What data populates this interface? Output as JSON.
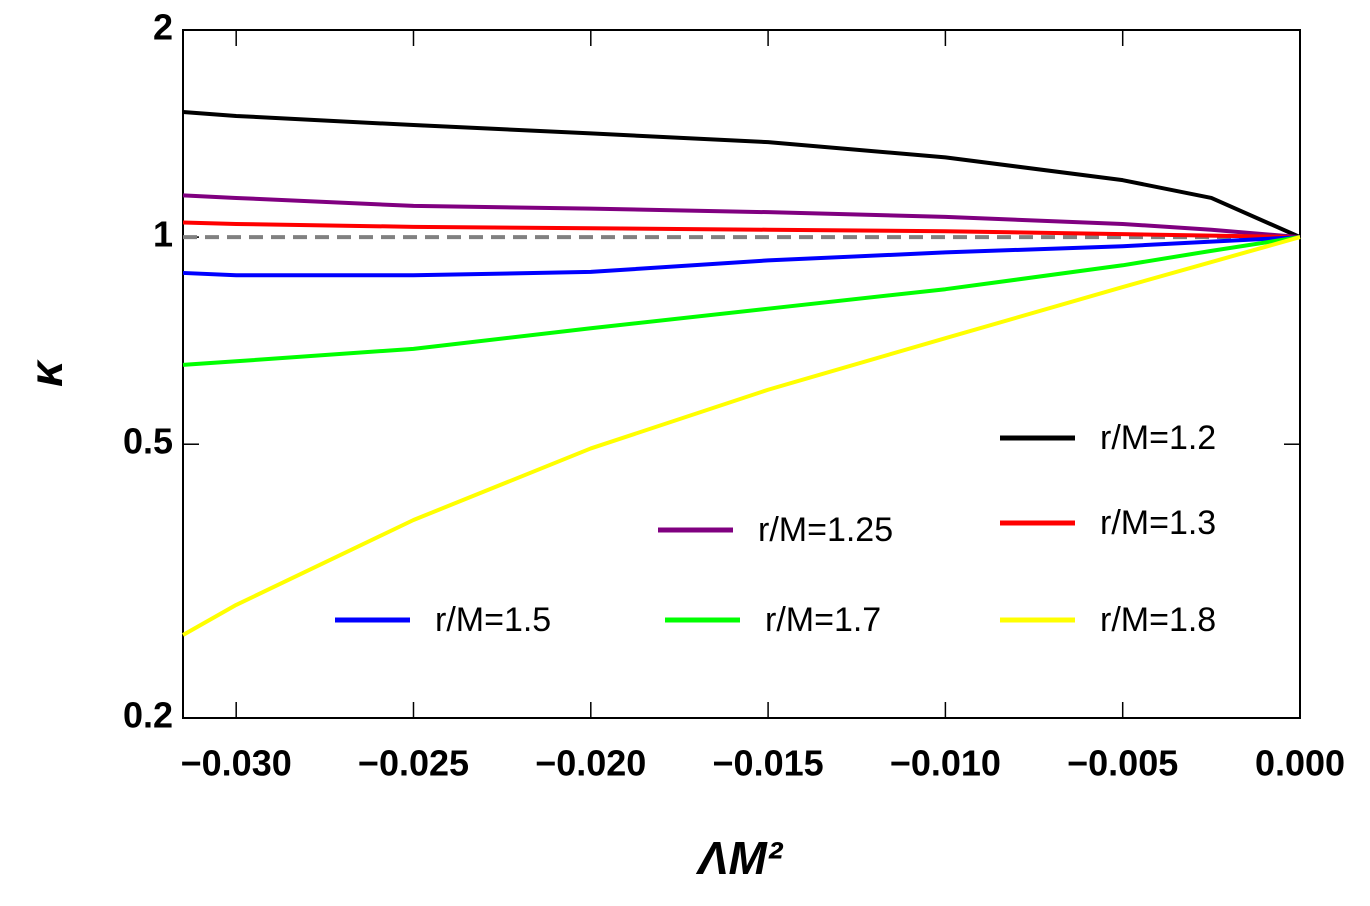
{
  "chart_data": {
    "type": "line",
    "x_label": "ΛM²",
    "y_label": "κ",
    "x": [
      -0.0315,
      -0.03,
      -0.025,
      -0.02,
      -0.015,
      -0.01,
      -0.005,
      -0.0025,
      0
    ],
    "series": [
      {
        "name": "r/M=1.2",
        "color": "#000000",
        "values": [
          1.52,
          1.5,
          1.455,
          1.415,
          1.374,
          1.306,
          1.21,
          1.14,
          1
        ]
      },
      {
        "name": "r/M=1.25",
        "color": "#800080",
        "values": [
          1.15,
          1.14,
          1.11,
          1.1,
          1.087,
          1.07,
          1.045,
          1.025,
          1
        ]
      },
      {
        "name": "r/M=1.3",
        "color": "#ff0000",
        "values": [
          1.05,
          1.045,
          1.035,
          1.03,
          1.025,
          1.02,
          1.01,
          1.005,
          1
        ]
      },
      {
        "name": "r/M=1.5",
        "color": "#0000ff",
        "values": [
          0.887,
          0.88,
          0.88,
          0.89,
          0.925,
          0.95,
          0.97,
          0.985,
          1
        ]
      },
      {
        "name": "r/M=1.7",
        "color": "#00ff00",
        "values": [
          0.652,
          0.66,
          0.688,
          0.737,
          0.787,
          0.84,
          0.91,
          0.955,
          1
        ]
      },
      {
        "name": "r/M=1.8",
        "color": "#ffff00",
        "values": [
          0.264,
          0.292,
          0.388,
          0.493,
          0.6,
          0.713,
          0.846,
          0.92,
          1
        ]
      }
    ],
    "reference_line": {
      "value": 1,
      "color": "#808080"
    },
    "xlim": [
      -0.0315,
      0
    ],
    "xticks": [
      {
        "value": -0.03,
        "label": "−0.030"
      },
      {
        "value": -0.025,
        "label": "−0.025"
      },
      {
        "value": -0.02,
        "label": "−0.020"
      },
      {
        "value": -0.015,
        "label": "−0.015"
      },
      {
        "value": -0.01,
        "label": "−0.010"
      },
      {
        "value": -0.005,
        "label": "−0.005"
      },
      {
        "value": 0,
        "label": "0.000"
      }
    ],
    "ylim": [
      0.2,
      2
    ],
    "yticks": [
      0.2,
      0.5,
      1,
      2
    ],
    "y_log": true
  }
}
